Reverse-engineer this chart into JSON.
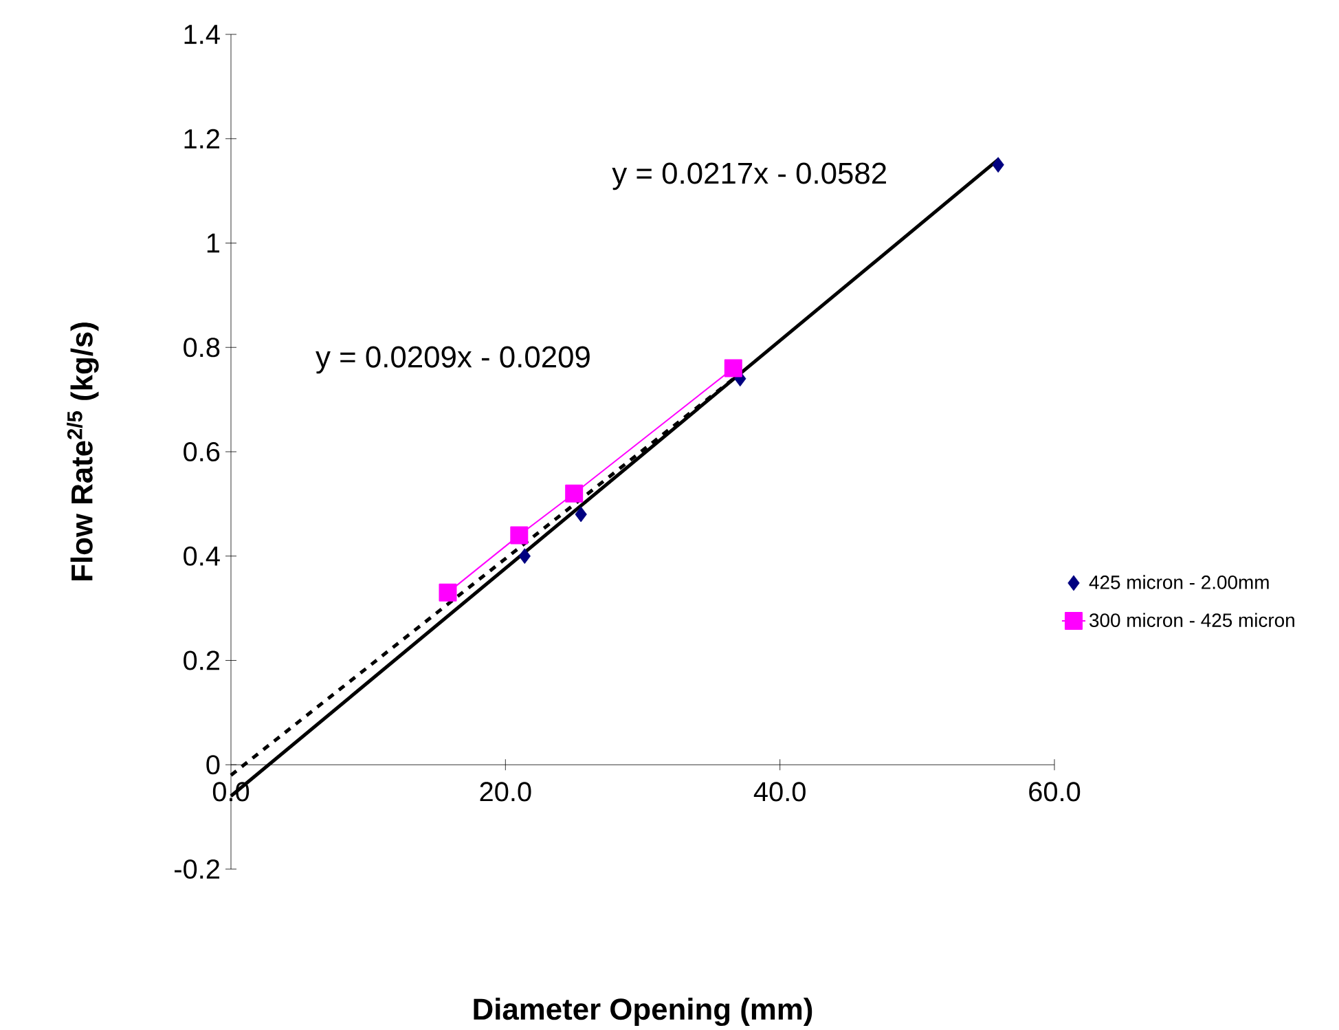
{
  "chart_data": {
    "type": "scatter",
    "xlabel": "Diameter Opening (mm)",
    "ylabel": "Flow Rate$^{2/5}$ (kg/s)",
    "xlim": [
      0,
      60
    ],
    "ylim": [
      -0.2,
      1.4
    ],
    "xticks": [
      {
        "value": 0,
        "label": "0.0"
      },
      {
        "value": 20,
        "label": "20.0"
      },
      {
        "value": 40,
        "label": "40.0"
      },
      {
        "value": 60,
        "label": "60.0"
      }
    ],
    "yticks": [
      -0.2,
      0,
      0.2,
      0.4,
      0.6,
      0.8,
      1,
      1.2,
      1.4
    ],
    "legend": "right",
    "grid": false,
    "annotations": [
      "y = 0.0217x - 0.0582",
      "y = 0.0209x - 0.0209"
    ],
    "series": [
      {
        "name": "425 micron - 2.00mm",
        "color": "#000080",
        "marker": "diamond",
        "x": [
          21.4,
          25.5,
          37.1,
          55.9
        ],
        "values": [
          0.4,
          0.48,
          0.74,
          1.15
        ]
      },
      {
        "name": "300 micron - 425 micron",
        "type": "line",
        "color": "#ff00ff",
        "marker": "square",
        "line_style": "solid",
        "x": [
          15.8,
          21.0,
          25.0,
          36.6
        ],
        "values": [
          0.33,
          0.44,
          0.52,
          0.76
        ]
      },
      {
        "type": "line",
        "color": "#000000",
        "marker": "none",
        "line_style": "solid",
        "x": [
          0,
          55.9
        ],
        "values": [
          -0.06,
          1.16
        ]
      },
      {
        "type": "line",
        "color": "#000000",
        "marker": "none",
        "line_style": "dotted",
        "x": [
          0,
          37.1
        ],
        "values": [
          -0.02,
          0.75
        ]
      }
    ]
  }
}
